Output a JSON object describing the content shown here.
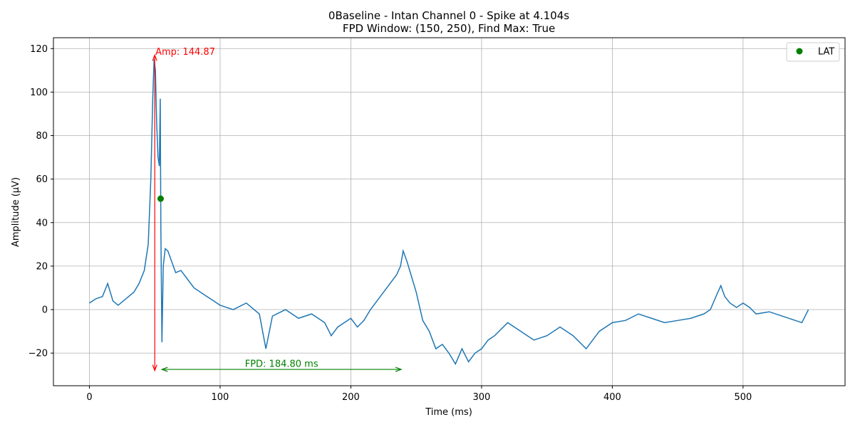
{
  "chart_data": {
    "type": "line",
    "title": "0Baseline - Intan Channel 0 - Spike at 4.104s",
    "subtitle": "FPD Window: (150, 250), Find Max: True",
    "xlabel": "Time (ms)",
    "ylabel": "Amplitude (μV)",
    "xlim": [
      -27.5,
      578
    ],
    "ylim": [
      -35,
      125
    ],
    "xticks": [
      0,
      100,
      200,
      300,
      400,
      500
    ],
    "yticks": [
      -20,
      0,
      20,
      40,
      60,
      80,
      100,
      120
    ],
    "ytick_labels": [
      "−20",
      "0",
      "20",
      "40",
      "60",
      "80",
      "100",
      "120"
    ],
    "grid": true,
    "legend_position": "top-right",
    "series": [
      {
        "color": "#1f77b4",
        "x": [
          0,
          5,
          10,
          14,
          18,
          22,
          26,
          30,
          34,
          38,
          42,
          45,
          47,
          48.5,
          49.5,
          50.5,
          51.5,
          52.5,
          53.5,
          54.2,
          54.7,
          55.5,
          56.5,
          58,
          60,
          63,
          66,
          70,
          75,
          80,
          85,
          90,
          95,
          100,
          110,
          120,
          130,
          135,
          140,
          150,
          160,
          170,
          180,
          185,
          190,
          200,
          205,
          210,
          215,
          220,
          225,
          230,
          235,
          238,
          240,
          243,
          246,
          250,
          255,
          260,
          265,
          270,
          275,
          280,
          285,
          290,
          295,
          300,
          305,
          310,
          320,
          330,
          340,
          350,
          360,
          370,
          380,
          390,
          400,
          410,
          420,
          430,
          440,
          450,
          460,
          470,
          475,
          480,
          483,
          486,
          490,
          495,
          500,
          505,
          510,
          520,
          530,
          540,
          545,
          550
        ],
        "y": [
          3,
          5,
          6,
          12,
          4,
          2,
          4,
          6,
          8,
          12,
          18,
          30,
          60,
          98,
          115,
          110,
          85,
          70,
          66,
          97,
          35,
          -15,
          20,
          28,
          27,
          22,
          17,
          18,
          14,
          10,
          8,
          6,
          4,
          2,
          0,
          3,
          -2,
          -18,
          -3,
          0,
          -4,
          -2,
          -6,
          -12,
          -8,
          -4,
          -8,
          -5,
          0,
          4,
          8,
          12,
          16,
          20,
          27,
          22,
          16,
          8,
          -5,
          -10,
          -18,
          -16,
          -20,
          -25,
          -18,
          -24,
          -20,
          -18,
          -14,
          -12,
          -6,
          -10,
          -14,
          -12,
          -8,
          -12,
          -18,
          -10,
          -6,
          -5,
          -2,
          -4,
          -6,
          -5,
          -4,
          -2,
          0,
          7,
          11,
          6,
          3,
          1,
          3,
          1,
          -2,
          -1,
          -3,
          -5,
          -6,
          0
        ]
      }
    ],
    "markers": [
      {
        "name": "LAT",
        "x": 54.5,
        "y": 51,
        "color": "#008000"
      }
    ],
    "annotations": {
      "amp": {
        "label": "Amp: 144.87",
        "x": 50,
        "y_from": -28,
        "y_to": 117,
        "text_x": 50.5,
        "text_y": 118.5,
        "color": "#ff0000"
      },
      "fpd": {
        "label": "FPD: 184.80 ms",
        "y": -27.5,
        "x_from": 55.5,
        "x_to": 238.5,
        "text_x": 147,
        "text_y": -25,
        "color": "#008000"
      }
    }
  }
}
